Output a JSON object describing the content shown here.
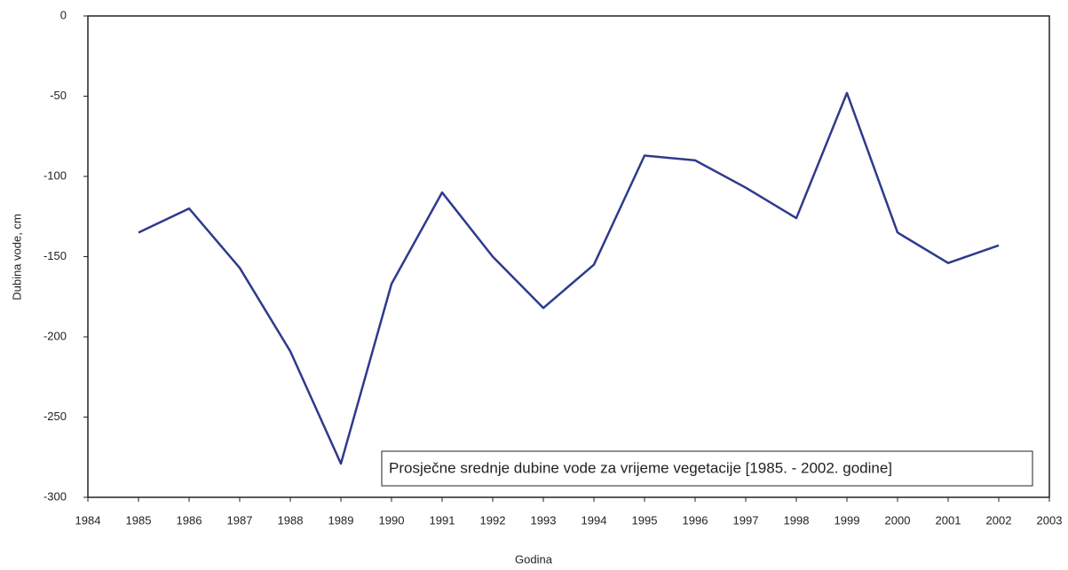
{
  "chart_data": {
    "type": "line",
    "annotation": "Prosječne srednje dubine vode za vrijeme vegetacije [1985. - 2002. godine]",
    "x_label": "Godina",
    "y_label": "Dubina vode, cm",
    "x": [
      1985,
      1986,
      1987,
      1988,
      1989,
      1990,
      1991,
      1992,
      1993,
      1994,
      1995,
      1996,
      1997,
      1998,
      1999,
      2000,
      2001,
      2002
    ],
    "values": [
      -135,
      -120,
      -157,
      -209,
      -279,
      -167,
      -110,
      -150,
      -182,
      -155,
      -87,
      -90,
      -107,
      -126,
      -48,
      -135,
      -154,
      -143
    ],
    "color": "#2e3a8c",
    "xlim": [
      1984,
      2003
    ],
    "xticks": [
      1984,
      1985,
      1986,
      1987,
      1988,
      1989,
      1990,
      1991,
      1992,
      1993,
      1994,
      1995,
      1996,
      1997,
      1998,
      1999,
      2000,
      2001,
      2002,
      2003
    ],
    "ylim": [
      -300,
      0
    ],
    "yticks": [
      -300,
      -250,
      -200,
      -150,
      -100,
      -50,
      0
    ],
    "grid": false
  }
}
